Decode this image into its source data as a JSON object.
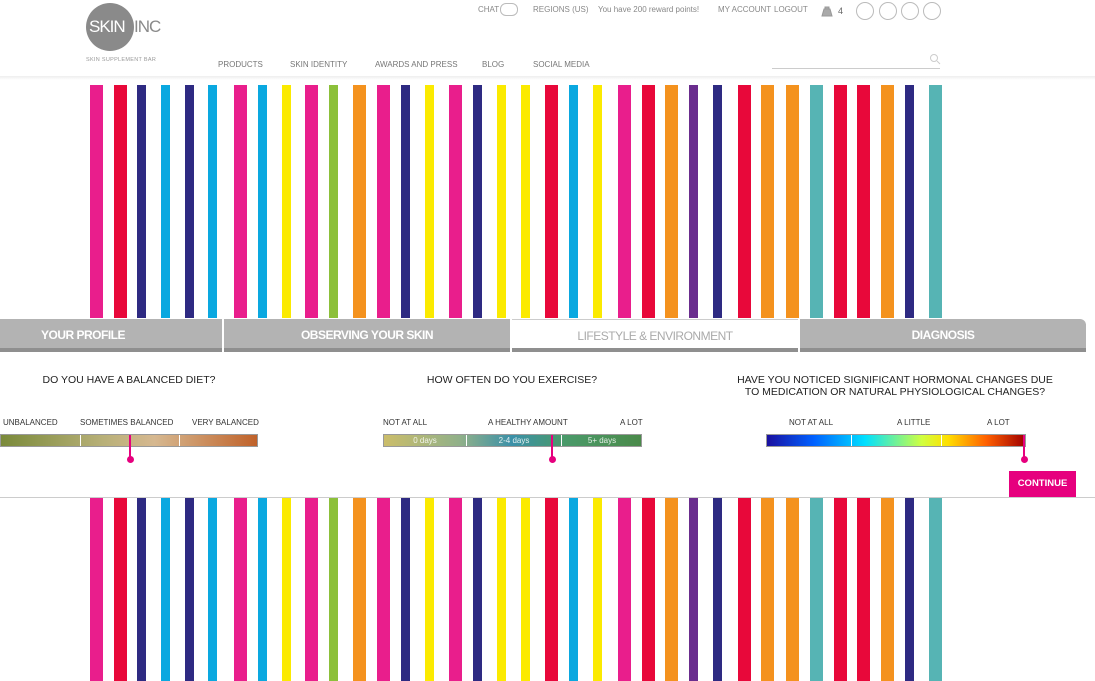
{
  "header": {
    "logo": {
      "mark": "SKIN",
      "suffix": "INC",
      "tagline": "SKIN SUPPLEMENT BAR"
    },
    "top_links": [
      "CHAT",
      "REGIONS (US)",
      "You have 200 reward points!",
      "MY ACCOUNT",
      "LOGOUT"
    ],
    "cart_count": "4",
    "nav": [
      "PRODUCTS",
      "SKIN IDENTITY",
      "AWARDS AND PRESS",
      "BLOG",
      "SOCIAL MEDIA"
    ]
  },
  "tabs": [
    "YOUR PROFILE",
    "OBSERVING YOUR SKIN",
    "LIFESTYLE & ENVIRONMENT",
    "DIAGNOSIS"
  ],
  "questions": [
    {
      "title": "DO YOU HAVE A BALANCED DIET?",
      "labels": [
        "UNBALANCED",
        "SOMETIMES BALANCED",
        "VERY BALANCED"
      ]
    },
    {
      "title": "HOW OFTEN DO YOU EXERCISE?",
      "labels": [
        "NOT AT ALL",
        "A HEALTHY AMOUNT",
        "A LOT"
      ],
      "segments": [
        "0 days",
        "2-4 days",
        "5+ days"
      ]
    },
    {
      "title": "HAVE YOU NOTICED SIGNIFICANT HORMONAL CHANGES DUE TO MEDICATION OR NATURAL PHYSIOLOGICAL CHANGES?",
      "labels": [
        "NOT AT ALL",
        "A LITTLE",
        "A LOT"
      ]
    }
  ],
  "continue": "CONTINUE"
}
